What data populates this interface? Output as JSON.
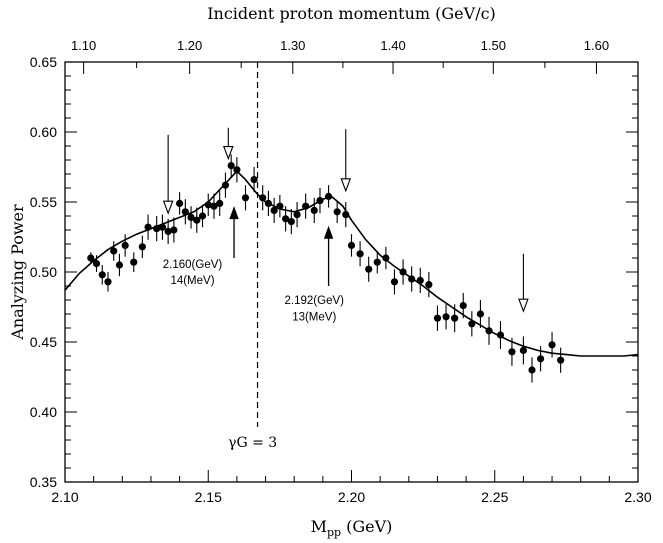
{
  "chart_data": {
    "type": "scatter",
    "title": "",
    "xlabel": "M",
    "xlabel_sub": "pp",
    "xlabel_unit": " (GeV)",
    "ylabel": "Analyzing Power",
    "top_xlabel": "Incident proton momentum (GeV/c)",
    "xlim": [
      2.1,
      2.3
    ],
    "ylim": [
      0.35,
      0.65
    ],
    "x_ticks": [
      "2.10",
      "2.15",
      "2.20",
      "2.25",
      "2.30"
    ],
    "y_ticks": [
      "0.35",
      "0.40",
      "0.45",
      "0.50",
      "0.55",
      "0.60",
      "0.65"
    ],
    "top_ticks": [
      {
        "label": "1.10",
        "mpp": 2.1065
      },
      {
        "label": "1.20",
        "mpp": 2.1435
      },
      {
        "label": "1.30",
        "mpp": 2.1795
      },
      {
        "label": "1.40",
        "mpp": 2.2145
      },
      {
        "label": "1.50",
        "mpp": 2.2495
      },
      {
        "label": "1.60",
        "mpp": 2.2855
      }
    ],
    "top_ticks_major_labels": [
      "1.10",
      "1.20",
      "1.30",
      "1.40",
      "1.50",
      "1.60"
    ],
    "series": [
      {
        "type": "scatter-errorbar",
        "points": [
          [
            2.109,
            0.51,
            0.004
          ],
          [
            2.111,
            0.506,
            0.006
          ],
          [
            2.113,
            0.498,
            0.007
          ],
          [
            2.115,
            0.493,
            0.007
          ],
          [
            2.117,
            0.515,
            0.007
          ],
          [
            2.119,
            0.505,
            0.008
          ],
          [
            2.121,
            0.519,
            0.008
          ],
          [
            2.124,
            0.507,
            0.007
          ],
          [
            2.127,
            0.518,
            0.008
          ],
          [
            2.129,
            0.532,
            0.009
          ],
          [
            2.132,
            0.531,
            0.009
          ],
          [
            2.134,
            0.532,
            0.009
          ],
          [
            2.136,
            0.529,
            0.009
          ],
          [
            2.138,
            0.53,
            0.009
          ],
          [
            2.14,
            0.549,
            0.008
          ],
          [
            2.142,
            0.543,
            0.009
          ],
          [
            2.144,
            0.539,
            0.008
          ],
          [
            2.146,
            0.537,
            0.009
          ],
          [
            2.148,
            0.54,
            0.008
          ],
          [
            2.15,
            0.548,
            0.008
          ],
          [
            2.152,
            0.547,
            0.009
          ],
          [
            2.154,
            0.549,
            0.009
          ],
          [
            2.156,
            0.562,
            0.009
          ],
          [
            2.158,
            0.576,
            0.008
          ],
          [
            2.16,
            0.573,
            0.009
          ],
          [
            2.163,
            0.553,
            0.009
          ],
          [
            2.166,
            0.566,
            0.009
          ],
          [
            2.169,
            0.553,
            0.009
          ],
          [
            2.171,
            0.549,
            0.009
          ],
          [
            2.173,
            0.544,
            0.009
          ],
          [
            2.175,
            0.547,
            0.008
          ],
          [
            2.177,
            0.538,
            0.009
          ],
          [
            2.179,
            0.536,
            0.009
          ],
          [
            2.181,
            0.541,
            0.009
          ],
          [
            2.184,
            0.547,
            0.009
          ],
          [
            2.187,
            0.544,
            0.009
          ],
          [
            2.189,
            0.551,
            0.009
          ],
          [
            2.192,
            0.554,
            0.008
          ],
          [
            2.195,
            0.543,
            0.008
          ],
          [
            2.198,
            0.541,
            0.009
          ],
          [
            2.2,
            0.519,
            0.008
          ],
          [
            2.203,
            0.513,
            0.009
          ],
          [
            2.206,
            0.502,
            0.009
          ],
          [
            2.209,
            0.507,
            0.008
          ],
          [
            2.212,
            0.51,
            0.008
          ],
          [
            2.215,
            0.493,
            0.009
          ],
          [
            2.218,
            0.5,
            0.009
          ],
          [
            2.221,
            0.495,
            0.009
          ],
          [
            2.224,
            0.494,
            0.009
          ],
          [
            2.227,
            0.491,
            0.009
          ],
          [
            2.23,
            0.467,
            0.009
          ],
          [
            2.233,
            0.468,
            0.009
          ],
          [
            2.236,
            0.467,
            0.01
          ],
          [
            2.239,
            0.476,
            0.009
          ],
          [
            2.242,
            0.463,
            0.009
          ],
          [
            2.245,
            0.47,
            0.01
          ],
          [
            2.248,
            0.458,
            0.01
          ],
          [
            2.252,
            0.455,
            0.01
          ],
          [
            2.256,
            0.443,
            0.01
          ],
          [
            2.26,
            0.444,
            0.01
          ],
          [
            2.263,
            0.43,
            0.009
          ],
          [
            2.266,
            0.438,
            0.009
          ],
          [
            2.27,
            0.448,
            0.009
          ],
          [
            2.273,
            0.437,
            0.009
          ]
        ]
      },
      {
        "type": "line",
        "points": [
          [
            2.1,
            0.487
          ],
          [
            2.105,
            0.499
          ],
          [
            2.11,
            0.508
          ],
          [
            2.115,
            0.516
          ],
          [
            2.12,
            0.522
          ],
          [
            2.125,
            0.527
          ],
          [
            2.13,
            0.531
          ],
          [
            2.135,
            0.535
          ],
          [
            2.14,
            0.539
          ],
          [
            2.145,
            0.543
          ],
          [
            2.15,
            0.55
          ],
          [
            2.155,
            0.561
          ],
          [
            2.16,
            0.572
          ],
          [
            2.163,
            0.566
          ],
          [
            2.167,
            0.556
          ],
          [
            2.17,
            0.55
          ],
          [
            2.175,
            0.545
          ],
          [
            2.18,
            0.543
          ],
          [
            2.185,
            0.546
          ],
          [
            2.19,
            0.552
          ],
          [
            2.193,
            0.554
          ],
          [
            2.197,
            0.547
          ],
          [
            2.2,
            0.537
          ],
          [
            2.205,
            0.523
          ],
          [
            2.21,
            0.512
          ],
          [
            2.215,
            0.504
          ],
          [
            2.22,
            0.497
          ],
          [
            2.225,
            0.49
          ],
          [
            2.23,
            0.482
          ],
          [
            2.235,
            0.475
          ],
          [
            2.24,
            0.468
          ],
          [
            2.245,
            0.462
          ],
          [
            2.25,
            0.456
          ],
          [
            2.255,
            0.451
          ],
          [
            2.26,
            0.447
          ],
          [
            2.265,
            0.444
          ],
          [
            2.27,
            0.442
          ],
          [
            2.275,
            0.441
          ],
          [
            2.28,
            0.44
          ],
          [
            2.285,
            0.44
          ],
          [
            2.29,
            0.44
          ],
          [
            2.295,
            0.44
          ],
          [
            2.3,
            0.441
          ]
        ]
      }
    ],
    "open_arrows_down": [
      {
        "x": 2.136,
        "y_top": 0.598,
        "y_tip": 0.542
      },
      {
        "x": 2.157,
        "y_top": 0.603,
        "y_tip": 0.581
      },
      {
        "x": 2.198,
        "y_top": 0.602,
        "y_tip": 0.558
      },
      {
        "x": 2.26,
        "y_top": 0.513,
        "y_tip": 0.472
      }
    ],
    "filled_arrows_up": [
      {
        "x": 2.159,
        "y_tail": 0.51,
        "y_tip": 0.546
      },
      {
        "x": 2.192,
        "y_tail": 0.49,
        "y_tip": 0.532
      }
    ],
    "dashed_vline_x": 2.1672,
    "annotations": [
      {
        "text": "2.160(GeV)",
        "x": 2.1445,
        "y": 0.503
      },
      {
        "text": "14(MeV)",
        "x": 2.1445,
        "y": 0.4915
      },
      {
        "text": "2.192(GeV)",
        "x": 2.187,
        "y": 0.477
      },
      {
        "text": "13(MeV)",
        "x": 2.187,
        "y": 0.4655
      }
    ],
    "gamma_label": {
      "text": "γG = 3",
      "x": 2.1655,
      "y": 0.375
    }
  }
}
